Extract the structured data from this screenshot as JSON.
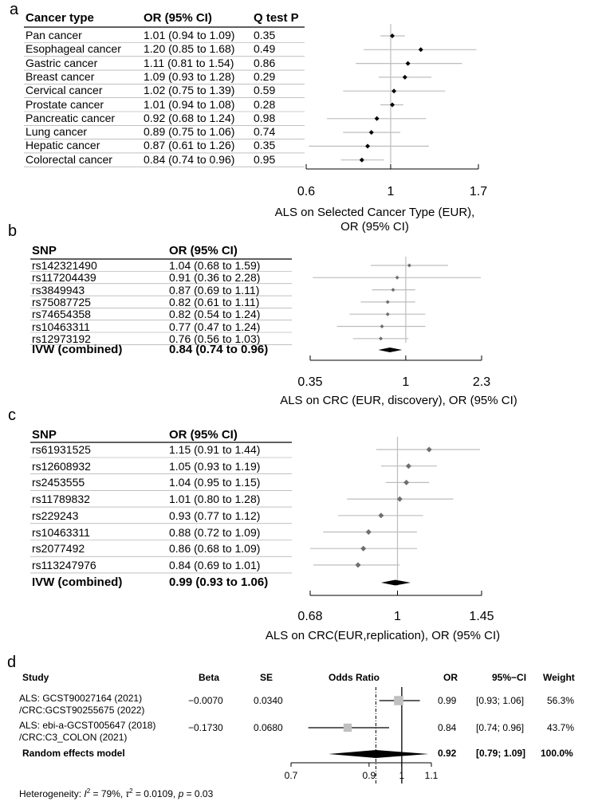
{
  "chart_data": [
    {
      "id": "a",
      "type": "forest",
      "panel_label": "a",
      "columns": [
        "Cancer type",
        "OR (95% CI)",
        "Q test P"
      ],
      "rows": [
        {
          "label": "Pan cancer",
          "or_text": "1.01 (0.94 to 1.09)",
          "p": "0.35",
          "or": 1.01,
          "lo": 0.94,
          "hi": 1.09
        },
        {
          "label": "Esophageal cancer",
          "or_text": "1.20 (0.85 to 1.68)",
          "p": "0.49",
          "or": 1.2,
          "lo": 0.85,
          "hi": 1.68
        },
        {
          "label": "Gastric cancer",
          "or_text": "1.11 (0.81 to 1.54)",
          "p": "0.86",
          "or": 1.11,
          "lo": 0.81,
          "hi": 1.54
        },
        {
          "label": "Breast cancer",
          "or_text": "1.09 (0.93 to 1.28)",
          "p": "0.29",
          "or": 1.09,
          "lo": 0.93,
          "hi": 1.28
        },
        {
          "label": "Cervical cancer",
          "or_text": "1.02 (0.75 to 1.39)",
          "p": "0.59",
          "or": 1.02,
          "lo": 0.75,
          "hi": 1.39
        },
        {
          "label": "Prostate cancer",
          "or_text": "1.01 (0.94 to 1.08)",
          "p": "0.28",
          "or": 1.01,
          "lo": 0.94,
          "hi": 1.08
        },
        {
          "label": "Pancreatic cancer",
          "or_text": "0.92 (0.68 to 1.24)",
          "p": "0.98",
          "or": 0.92,
          "lo": 0.68,
          "hi": 1.24
        },
        {
          "label": "Lung cancer",
          "or_text": "0.89 (0.75 to 1.06)",
          "p": "0.74",
          "or": 0.89,
          "lo": 0.75,
          "hi": 1.06
        },
        {
          "label": "Hepatic cancer",
          "or_text": "0.87 (0.61 to 1.26)",
          "p": "0.35",
          "or": 0.87,
          "lo": 0.61,
          "hi": 1.26
        },
        {
          "label": "Colorectal cancer",
          "or_text": "0.84 (0.74 to 0.96)",
          "p": "0.95",
          "or": 0.84,
          "lo": 0.74,
          "hi": 0.96
        }
      ],
      "x_ticks": [
        0.6,
        1,
        1.7
      ],
      "x_tick_labels": [
        "0.6",
        "1",
        "1.7"
      ],
      "xlim": [
        0.6,
        1.7
      ],
      "log_scale": true,
      "xlabel_line1": "ALS on Selected Cancer Type (EUR),",
      "xlabel_line2": "OR (95% CI)"
    },
    {
      "id": "b",
      "type": "forest",
      "panel_label": "b",
      "columns": [
        "SNP",
        "OR (95% CI)"
      ],
      "rows": [
        {
          "label": "rs142321490",
          "or_text": "1.04 (0.68 to 1.59)",
          "or": 1.04,
          "lo": 0.68,
          "hi": 1.59
        },
        {
          "label": "rs117204439",
          "or_text": "0.91 (0.36 to 2.28)",
          "or": 0.91,
          "lo": 0.36,
          "hi": 2.28
        },
        {
          "label": "rs3849943",
          "or_text": "0.87 (0.69 to 1.11)",
          "or": 0.87,
          "lo": 0.69,
          "hi": 1.11
        },
        {
          "label": "rs75087725",
          "or_text": "0.82 (0.61 to 1.11)",
          "or": 0.82,
          "lo": 0.61,
          "hi": 1.11
        },
        {
          "label": "rs74654358",
          "or_text": "0.82 (0.54 to 1.24)",
          "or": 0.82,
          "lo": 0.54,
          "hi": 1.24
        },
        {
          "label": "rs10463311",
          "or_text": "0.77 (0.47 to 1.24)",
          "or": 0.77,
          "lo": 0.47,
          "hi": 1.24
        },
        {
          "label": "rs12973192",
          "or_text": "0.76 (0.56 to 1.03)",
          "or": 0.76,
          "lo": 0.56,
          "hi": 1.03
        }
      ],
      "combined": {
        "label": "IVW (combined)",
        "or_text": "0.84 (0.74 to 0.96)",
        "or": 0.84,
        "lo": 0.74,
        "hi": 0.96
      },
      "x_ticks": [
        0.35,
        1,
        2.3
      ],
      "x_tick_labels": [
        "0.35",
        "1",
        "2.3"
      ],
      "xlim": [
        0.35,
        2.3
      ],
      "log_scale": true,
      "xlabel_line1": "ALS on CRC (EUR, discovery), OR (95% CI)"
    },
    {
      "id": "c",
      "type": "forest",
      "panel_label": "c",
      "columns": [
        "SNP",
        "OR (95% CI)"
      ],
      "rows": [
        {
          "label": "rs61931525",
          "or_text": "1.15 (0.91 to 1.44)",
          "or": 1.15,
          "lo": 0.91,
          "hi": 1.44
        },
        {
          "label": "rs12608932",
          "or_text": "1.05 (0.93 to 1.19)",
          "or": 1.05,
          "lo": 0.93,
          "hi": 1.19
        },
        {
          "label": "rs2453555",
          "or_text": "1.04 (0.95 to 1.15)",
          "or": 1.04,
          "lo": 0.95,
          "hi": 1.15
        },
        {
          "label": "rs11789832",
          "or_text": "1.01 (0.80 to 1.28)",
          "or": 1.01,
          "lo": 0.8,
          "hi": 1.28
        },
        {
          "label": "rs229243",
          "or_text": "0.93 (0.77 to 1.12)",
          "or": 0.93,
          "lo": 0.77,
          "hi": 1.12
        },
        {
          "label": "rs10463311",
          "or_text": "0.88 (0.72 to 1.09)",
          "or": 0.88,
          "lo": 0.72,
          "hi": 1.09
        },
        {
          "label": "rs2077492",
          "or_text": "0.86 (0.68 to 1.09)",
          "or": 0.86,
          "lo": 0.68,
          "hi": 1.09
        },
        {
          "label": "rs113247976",
          "or_text": "0.84 (0.69 to 1.01)",
          "or": 0.84,
          "lo": 0.69,
          "hi": 1.01
        }
      ],
      "combined": {
        "label": "IVW (combined)",
        "or_text": "0.99 (0.93 to 1.06)",
        "or": 0.99,
        "lo": 0.93,
        "hi": 1.06
      },
      "x_ticks": [
        0.68,
        1,
        1.45
      ],
      "x_tick_labels": [
        "0.68",
        "1",
        "1.45"
      ],
      "xlim": [
        0.68,
        1.45
      ],
      "log_scale": true,
      "xlabel_line1": "ALS on CRC(EUR,replication), OR (95% CI)"
    },
    {
      "id": "d",
      "type": "forest",
      "panel_label": "d",
      "columns": [
        "Study",
        "Beta",
        "SE",
        "Odds Ratio",
        "OR",
        "95%−CI",
        "Weight"
      ],
      "rows": [
        {
          "study_line1": "ALS: GCST90027164 (2021)",
          "study_line2": "/CRC:GCST90255675 (2022)",
          "beta": "−0.0070",
          "se": "0.0340",
          "or_text": "0.99",
          "ci_text": "[0.93; 1.06]",
          "weight_text": "56.3%",
          "or": 0.99,
          "lo": 0.93,
          "hi": 1.06,
          "weight": 56.3
        },
        {
          "study_line1": "ALS: ebi-a-GCST005647 (2018)",
          "study_line2": "/CRC:C3_COLON (2021)",
          "beta": "−0.1730",
          "se": "0.0680",
          "or_text": "0.84",
          "ci_text": "[0.74; 0.96]",
          "weight_text": "43.7%",
          "or": 0.84,
          "lo": 0.74,
          "hi": 0.96,
          "weight": 43.7
        }
      ],
      "combined": {
        "label": "Random effects model",
        "or_text": "0.92",
        "ci_text": "[0.79; 1.09]",
        "weight_text": "100.0%",
        "or": 0.92,
        "lo": 0.79,
        "hi": 1.09
      },
      "x_ticks": [
        0.7,
        0.9,
        1,
        1.1
      ],
      "x_tick_labels": [
        "0.7",
        "0.9",
        "1",
        "1.1"
      ],
      "xlim": [
        0.7,
        1.1
      ],
      "log_scale": true,
      "heterogeneity": {
        "prefix": "Heterogeneity: ",
        "i2_sym": "I",
        "i2_val": " = 79%, ",
        "tau_sym": "τ",
        "tau_val": " = 0.0109, ",
        "p_sym": "p",
        "p_val": " = 0.03"
      }
    }
  ],
  "colors": {
    "ci_line": "#bdbdbd",
    "axis": "#000000",
    "ref_line": "#bdbdbd",
    "marker_dark": "#000000",
    "marker_gray": "#6e6e6e",
    "box_gray": "#c0c0c0",
    "row_sep": "#9a9a9a"
  }
}
